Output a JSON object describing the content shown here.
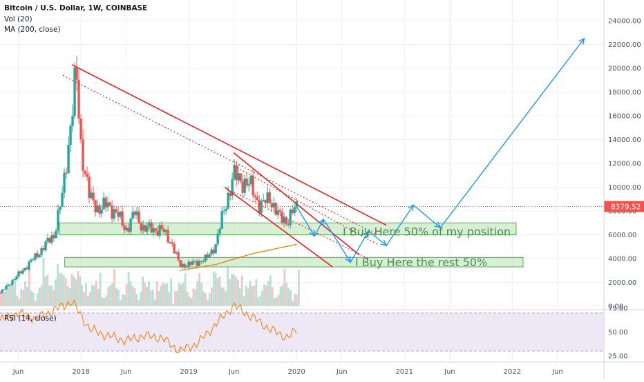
{
  "header": {
    "title": "Bitcoin / U.S. Dollar, 1W, COINBASE",
    "vol_label": "Vol (20)",
    "ma_label": "MA (200, close)",
    "rsi_label": "RSI (14, close)"
  },
  "price_axis": {
    "ticks": [
      "24000.00",
      "22000.00",
      "20000.00",
      "18000.00",
      "16000.00",
      "14000.00",
      "12000.00",
      "10000.00",
      "8000.00",
      "6000.00",
      "4000.00",
      "2000.00",
      "0.00"
    ],
    "current_price": "8379.52"
  },
  "rsi_axis": {
    "ticks": [
      "75.00",
      "50.00",
      "25.00"
    ]
  },
  "time_axis": {
    "labels": [
      "Jun",
      "2018",
      "Jun",
      "2019",
      "Jun",
      "2020",
      "Jun",
      "2021",
      "Jun",
      "2022",
      "Jun"
    ]
  },
  "annotations": {
    "buy_first": "I Buy Here 50% of my position",
    "buy_second": "I Buy Here the rest 50%"
  },
  "colors": {
    "up": "#26a69a",
    "down": "#ef5350",
    "trend": "#e62020",
    "projection": "#2196f3",
    "ma": "#f57c00",
    "zone_fill": "#b7e4b0",
    "zone_stroke": "#4caf50",
    "rsi_line": "#f57c00",
    "rsi_band": "#ede7f6"
  },
  "chart_data": [
    {
      "type": "candlestick",
      "title": "Bitcoin / U.S. Dollar, 1W, COINBASE",
      "x_range": [
        "2017-04",
        "2022-11"
      ],
      "ylim": [
        0,
        25000
      ],
      "grid": true,
      "current_price": 8379.52,
      "close_path": [
        {
          "x": "2017-04",
          "y": 1100
        },
        {
          "x": "2017-06",
          "y": 2600
        },
        {
          "x": "2017-08",
          "y": 4200
        },
        {
          "x": "2017-10",
          "y": 6000
        },
        {
          "x": "2017-11",
          "y": 9500
        },
        {
          "x": "2017-12-15",
          "y": 19500
        },
        {
          "x": "2018-01",
          "y": 13500
        },
        {
          "x": "2018-02",
          "y": 9000
        },
        {
          "x": "2018-03",
          "y": 8200
        },
        {
          "x": "2018-04",
          "y": 8500
        },
        {
          "x": "2018-05",
          "y": 7800
        },
        {
          "x": "2018-06",
          "y": 6400
        },
        {
          "x": "2018-07",
          "y": 7800
        },
        {
          "x": "2018-08",
          "y": 6500
        },
        {
          "x": "2018-09",
          "y": 6500
        },
        {
          "x": "2018-10",
          "y": 6400
        },
        {
          "x": "2018-11",
          "y": 5500
        },
        {
          "x": "2018-12",
          "y": 3400
        },
        {
          "x": "2019-01",
          "y": 3500
        },
        {
          "x": "2019-02",
          "y": 3700
        },
        {
          "x": "2019-03",
          "y": 4000
        },
        {
          "x": "2019-04",
          "y": 5200
        },
        {
          "x": "2019-05",
          "y": 8300
        },
        {
          "x": "2019-06",
          "y": 11000
        },
        {
          "x": "2019-07",
          "y": 10500
        },
        {
          "x": "2019-08",
          "y": 10000
        },
        {
          "x": "2019-09",
          "y": 8300
        },
        {
          "x": "2019-10",
          "y": 9200
        },
        {
          "x": "2019-11",
          "y": 7500
        },
        {
          "x": "2019-12",
          "y": 7200
        },
        {
          "x": "2020-01",
          "y": 8379.52
        }
      ],
      "moving_average_200": [
        {
          "x": "2018-12",
          "y": 3000
        },
        {
          "x": "2019-04",
          "y": 3500
        },
        {
          "x": "2019-08",
          "y": 4400
        },
        {
          "x": "2020-01",
          "y": 5200
        }
      ],
      "support_zones": [
        {
          "label": "I Buy Here 50% of my position",
          "from": 6000,
          "to": 7000
        },
        {
          "label": "I Buy Here the rest 50%",
          "from": 3300,
          "to": 4100
        }
      ],
      "trendlines": [
        {
          "style": "solid",
          "from": {
            "x": "2017-12",
            "y": 20300
          },
          "to": {
            "x": "2020-11",
            "y": 6800
          }
        },
        {
          "style": "dotted",
          "from": {
            "x": "2017-11",
            "y": 19400
          },
          "to": {
            "x": "2020-10",
            "y": 6000
          }
        },
        {
          "style": "solid",
          "from": {
            "x": "2019-06",
            "y": 12900
          },
          "to": {
            "x": "2020-08",
            "y": 4300
          }
        },
        {
          "style": "solid",
          "from": {
            "x": "2019-05",
            "y": 10000
          },
          "to": {
            "x": "2020-05",
            "y": 3300
          }
        },
        {
          "style": "dotted",
          "from": {
            "x": "2019-06",
            "y": 11800
          },
          "to": {
            "x": "2020-10",
            "y": 5200
          }
        },
        {
          "style": "dotted",
          "from": {
            "x": "2019-06",
            "y": 9600
          },
          "to": {
            "x": "2020-09",
            "y": 4000
          }
        }
      ],
      "projection_path": [
        {
          "x": "2020-01",
          "y": 8379
        },
        {
          "x": "2020-03",
          "y": 5900
        },
        {
          "x": "2020-04",
          "y": 7300
        },
        {
          "x": "2020-07",
          "y": 3700
        },
        {
          "x": "2020-09",
          "y": 6300
        },
        {
          "x": "2020-11",
          "y": 5100
        },
        {
          "x": "2021-02",
          "y": 8500
        },
        {
          "x": "2021-05",
          "y": 6600
        },
        {
          "x": "2022-09",
          "y": 22500
        }
      ]
    },
    {
      "type": "line",
      "series": [
        {
          "name": "RSI (14, close)",
          "values": [
            {
              "x": "2017-04",
              "y": 62
            },
            {
              "x": "2017-06",
              "y": 70
            },
            {
              "x": "2017-08",
              "y": 64
            },
            {
              "x": "2017-10",
              "y": 73
            },
            {
              "x": "2017-12",
              "y": 82
            },
            {
              "x": "2018-02",
              "y": 53
            },
            {
              "x": "2018-04",
              "y": 46
            },
            {
              "x": "2018-06",
              "y": 41
            },
            {
              "x": "2018-08",
              "y": 46
            },
            {
              "x": "2018-10",
              "y": 44
            },
            {
              "x": "2018-12",
              "y": 30
            },
            {
              "x": "2019-02",
              "y": 38
            },
            {
              "x": "2019-04",
              "y": 58
            },
            {
              "x": "2019-06",
              "y": 78
            },
            {
              "x": "2019-08",
              "y": 66
            },
            {
              "x": "2019-10",
              "y": 53
            },
            {
              "x": "2019-12",
              "y": 44
            },
            {
              "x": "2020-01",
              "y": 52
            }
          ]
        }
      ],
      "ylim": [
        25,
        80
      ]
    }
  ]
}
